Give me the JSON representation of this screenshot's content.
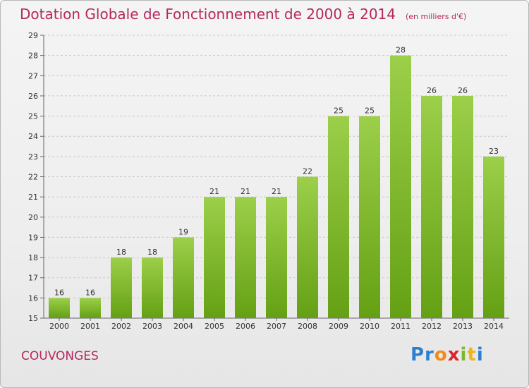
{
  "header": {
    "title": "Dotation Globale de Fonctionnement de 2000 à 2014",
    "unit": "(en milliers d'€)"
  },
  "footer": {
    "place": "COUVONGES",
    "logo": "Proxiti"
  },
  "colors": {
    "title": "#b5285e",
    "bar_top": "#9ccf4a",
    "bar_bottom": "#64a014",
    "grid": "#c8c8c8"
  },
  "chart_data": {
    "type": "bar",
    "title": "Dotation Globale de Fonctionnement de 2000 à 2014",
    "subtitle": "(en milliers d'€)",
    "xlabel": "",
    "ylabel": "",
    "categories": [
      "2000",
      "2001",
      "2002",
      "2003",
      "2004",
      "2005",
      "2006",
      "2007",
      "2008",
      "2009",
      "2010",
      "2011",
      "2012",
      "2013",
      "2014"
    ],
    "values": [
      16,
      16,
      18,
      18,
      19,
      21,
      21,
      21,
      22,
      25,
      25,
      28,
      26,
      26,
      23
    ],
    "ylim": [
      15,
      29
    ],
    "yticks": [
      15,
      16,
      17,
      18,
      19,
      20,
      21,
      22,
      23,
      24,
      25,
      26,
      27,
      28,
      29
    ],
    "grid": true,
    "grid_style": "dashed horizontal"
  }
}
